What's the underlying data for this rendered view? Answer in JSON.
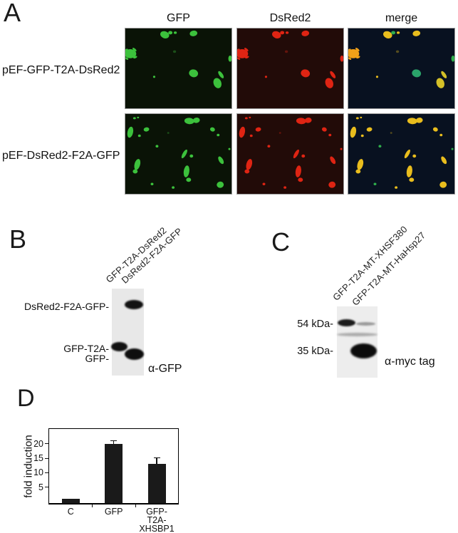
{
  "panel_a": {
    "label": "A",
    "columns": [
      "GFP",
      "DsRed2",
      "merge"
    ],
    "rows": [
      {
        "label": "pEF-GFP-T2A-DsRed2",
        "blobs": [
          [
            56,
            9,
            6.5,
            5,
            20,
            null,
            null
          ],
          [
            64,
            6,
            3,
            2.5,
            0,
            "#2fae4c",
            null
          ],
          [
            71,
            6,
            2.2,
            1.8,
            0,
            null,
            null
          ],
          [
            97,
            7,
            5.5,
            4,
            -10,
            null,
            null
          ],
          [
            7,
            36,
            8.5,
            6.5,
            0,
            "#f0a018",
            null
          ],
          [
            1,
            31,
            3,
            1.5,
            -35,
            "#f0a018",
            null
          ],
          [
            13,
            30,
            3.5,
            1.5,
            40,
            "#f0a018",
            null
          ],
          [
            14,
            41,
            3,
            1.5,
            -25,
            "#f0a018",
            null
          ],
          [
            2,
            43,
            2.5,
            1.3,
            30,
            "#f0a018",
            null
          ],
          [
            97,
            64,
            6.5,
            5.5,
            15,
            "#2aa46a",
            null
          ],
          [
            131,
            78,
            5.5,
            7.5,
            -20,
            "#d4c028",
            null
          ],
          [
            136,
            66,
            2.5,
            6,
            -35,
            "#d4c028",
            null
          ],
          [
            149,
            43,
            2.5,
            4.5,
            0,
            "#2fae4c",
            null
          ],
          [
            41,
            69,
            1.6,
            1.6,
            0,
            null,
            null
          ],
          [
            70,
            33,
            2.2,
            1.8,
            0,
            null,
            0.35
          ]
        ]
      },
      {
        "label": "pEF-DsRed2-F2A-GFP",
        "blobs": [
          [
            13,
            6,
            2,
            1.5,
            0,
            null,
            null
          ],
          [
            18,
            5,
            1.5,
            1.2,
            0,
            null,
            null
          ],
          [
            7,
            26,
            4,
            8,
            12,
            null,
            null
          ],
          [
            30,
            22,
            4,
            3,
            -10,
            null,
            null
          ],
          [
            20,
            31,
            2,
            1.8,
            0,
            null,
            null
          ],
          [
            91,
            10,
            7,
            4.5,
            5,
            null,
            null
          ],
          [
            101,
            9,
            5,
            3.8,
            -10,
            null,
            null
          ],
          [
            124,
            22,
            3.5,
            3,
            25,
            null,
            null
          ],
          [
            132,
            30,
            2,
            1.8,
            0,
            null,
            null
          ],
          [
            45,
            46,
            2,
            1.8,
            0,
            "#2fae4c",
            null
          ],
          [
            84,
            57,
            2.5,
            7,
            30,
            null,
            null
          ],
          [
            94,
            60,
            2.5,
            2.3,
            0,
            null,
            null
          ],
          [
            17,
            72,
            4,
            8,
            15,
            null,
            null
          ],
          [
            14,
            82,
            3.5,
            3,
            0,
            null,
            null
          ],
          [
            87,
            82,
            4,
            8.5,
            8,
            null,
            null
          ],
          [
            90,
            94,
            3.5,
            3,
            0,
            null,
            null
          ],
          [
            136,
            66,
            3,
            6,
            -30,
            null,
            null
          ],
          [
            135,
            101,
            5,
            4.5,
            -10,
            null,
            null
          ],
          [
            38,
            100,
            2,
            1.8,
            0,
            "#2fae4c",
            null
          ],
          [
            68,
            105,
            2,
            1.8,
            0,
            null,
            null
          ],
          [
            148,
            50,
            1.5,
            1.5,
            0,
            "#2fae4c",
            null
          ],
          [
            61,
            27,
            1.5,
            1.3,
            0,
            null,
            0.35
          ]
        ]
      }
    ],
    "colors": {
      "gfp": "#3cc13c",
      "dsred": "#df2413",
      "merge": "#e9bd1d",
      "gfp_bg": "#0a1306",
      "dsred_bg": "#220b08",
      "merge_bg": "#081120"
    }
  },
  "panel_b": {
    "label": "B",
    "lane_labels": [
      "GFP-T2A-DsRed2",
      "DsRed2-F2A-GFP"
    ],
    "band_labels": [
      "DsRed2-F2A-GFP-",
      "GFP-T2A-",
      "GFP-"
    ],
    "antibody": "α-GFP",
    "blot_bg": "#e8e8e8",
    "bands": [
      [
        175,
        421,
        26,
        13,
        "#121212",
        1
      ],
      [
        156,
        480,
        23,
        13,
        "#121212",
        1
      ],
      [
        175,
        489,
        27,
        16,
        "#0e0e0e",
        1
      ]
    ]
  },
  "panel_c": {
    "label": "C",
    "lane_labels": [
      "GFP-T2A-MT-XHSF380",
      "GFP-T2A-MT-HaHsp27"
    ],
    "marker_labels": [
      "54 kDa-",
      "35 kDa-"
    ],
    "antibody": "α-myc tag",
    "blot_bg": "#ededed",
    "bands": [
      [
        474,
        448,
        25,
        10,
        "#1c1c1c",
        1
      ],
      [
        500,
        452,
        27,
        5,
        "#9a9a9a",
        1
      ],
      [
        473,
        467,
        57,
        5,
        "#ababab",
        1.2
      ],
      [
        492,
        482,
        37,
        21,
        "#0c0c0c",
        1.2
      ]
    ]
  },
  "panel_d": {
    "label": "D",
    "chart_data": {
      "type": "bar",
      "categories": [
        "C",
        "GFP",
        "GFP-T2A-XHSBP1"
      ],
      "categories_display": [
        [
          "C"
        ],
        [
          "GFP"
        ],
        [
          "GFP-",
          "T2A-",
          "XHSBP1"
        ]
      ],
      "values": [
        1,
        20,
        13
      ],
      "errors": [
        0,
        1,
        2
      ],
      "title": "",
      "xlabel": "",
      "ylabel": "fold induction",
      "yticks": [
        5,
        10,
        15,
        20
      ],
      "ylim": [
        0,
        25
      ],
      "grid": false,
      "legend": false,
      "bar_color": "#1a1a1a"
    }
  }
}
